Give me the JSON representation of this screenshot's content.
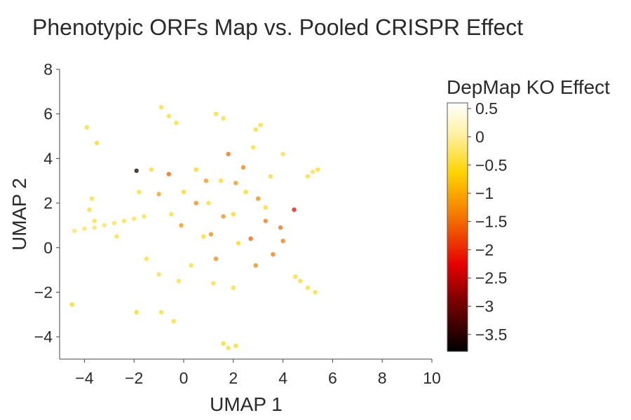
{
  "chart_data": {
    "type": "scatter",
    "title": "Phenotypic ORFs Map vs. Pooled CRISPR Effect",
    "xlabel": "UMAP 1",
    "ylabel": "UMAP 2",
    "xlim": [
      -5,
      10
    ],
    "ylim": [
      -5,
      8
    ],
    "x_ticks": [
      -4,
      -2,
      0,
      2,
      4,
      6,
      8,
      10
    ],
    "y_ticks": [
      -4,
      -2,
      0,
      2,
      4,
      6,
      8
    ],
    "x_tick_labels": [
      "−4",
      "−2",
      "0",
      "2",
      "4",
      "6",
      "8",
      "10"
    ],
    "y_tick_labels": [
      "−4",
      "−2",
      "0",
      "2",
      "4",
      "6",
      "8"
    ],
    "grid": false,
    "colorbar": {
      "title": "DepMap KO Effect",
      "range": [
        -3.8,
        0.6
      ],
      "ticks": [
        0.5,
        0,
        -0.5,
        -1,
        -1.5,
        -2,
        -2.5,
        -3,
        -3.5
      ],
      "tick_labels": [
        "0.5",
        "0",
        "−0.5",
        "−1",
        "−1.5",
        "−2",
        "−2.5",
        "−3",
        "−3.5"
      ],
      "colorscale": [
        [
          0.0,
          "#000000"
        ],
        [
          0.2,
          "#7a0000"
        ],
        [
          0.35,
          "#e60000"
        ],
        [
          0.55,
          "#f57a00"
        ],
        [
          0.72,
          "#ffd400"
        ],
        [
          0.87,
          "#fff0a0"
        ],
        [
          1.0,
          "#ffffff"
        ]
      ]
    },
    "series": [
      {
        "points": [
          [
            -1.9,
            3.45,
            -3.7
          ],
          [
            4.45,
            1.7,
            -2.2
          ],
          [
            -0.6,
            3.3,
            -1.6
          ],
          [
            1.8,
            4.2,
            -1.5
          ],
          [
            3.3,
            1.2,
            -1.4
          ],
          [
            2.7,
            0.4,
            -1.6
          ],
          [
            0.5,
            2.0,
            -1.3
          ],
          [
            3.9,
            0.9,
            -1.5
          ],
          [
            2.1,
            2.9,
            -1.2
          ],
          [
            1.3,
            -0.5,
            -1.3
          ],
          [
            3.6,
            -0.3,
            -1.4
          ],
          [
            -0.1,
            1.0,
            -1.2
          ],
          [
            2.4,
            3.6,
            -1.35
          ],
          [
            1.6,
            1.4,
            -1.25
          ],
          [
            3.0,
            2.2,
            -1.3
          ],
          [
            0.9,
            3.0,
            -1.2
          ],
          [
            4.0,
            0.3,
            -1.4
          ],
          [
            -1.0,
            2.4,
            -1.1
          ],
          [
            2.9,
            -0.8,
            -1.3
          ],
          [
            1.1,
            0.6,
            -1.25
          ],
          [
            -3.9,
            5.4,
            -0.5
          ],
          [
            -4.5,
            -2.55,
            -0.6
          ],
          [
            -3.5,
            4.7,
            -0.6
          ],
          [
            -3.7,
            2.2,
            -0.5
          ],
          [
            -3.8,
            1.7,
            -0.5
          ],
          [
            -3.6,
            1.2,
            -0.5
          ],
          [
            5.4,
            3.5,
            -0.5
          ],
          [
            5.2,
            3.4,
            -0.4
          ],
          [
            5.0,
            3.2,
            -0.5
          ],
          [
            5.3,
            -2.0,
            -0.5
          ],
          [
            5.0,
            -1.8,
            -0.5
          ],
          [
            4.7,
            -1.5,
            -0.5
          ],
          [
            4.5,
            -1.3,
            -0.5
          ],
          [
            1.6,
            -4.3,
            -0.6
          ],
          [
            1.8,
            -4.5,
            -0.5
          ],
          [
            2.1,
            -4.4,
            -0.6
          ],
          [
            -1.9,
            -2.9,
            -0.6
          ],
          [
            -0.4,
            -3.3,
            -0.5
          ],
          [
            -0.9,
            -2.9,
            -0.5
          ],
          [
            -2.7,
            0.5,
            -0.4
          ],
          [
            -4.4,
            0.75,
            -0.3
          ],
          [
            -4.0,
            0.85,
            -0.3
          ],
          [
            -3.6,
            0.9,
            -0.35
          ],
          [
            -3.2,
            1.0,
            -0.3
          ],
          [
            -2.8,
            1.1,
            -0.35
          ],
          [
            -2.4,
            1.2,
            -0.4
          ],
          [
            -2.0,
            1.3,
            -0.4
          ],
          [
            -1.6,
            1.4,
            -0.45
          ],
          [
            -0.9,
            6.3,
            -0.5
          ],
          [
            -0.6,
            5.9,
            -0.5
          ],
          [
            -0.3,
            5.6,
            -0.5
          ],
          [
            1.3,
            6.0,
            -0.5
          ],
          [
            1.6,
            5.8,
            -0.5
          ],
          [
            3.1,
            5.5,
            -0.5
          ],
          [
            2.9,
            5.3,
            -0.5
          ],
          [
            4.0,
            4.2,
            -0.4
          ],
          [
            0.0,
            2.5,
            -0.6
          ],
          [
            1.0,
            2.0,
            -0.5
          ],
          [
            2.0,
            1.5,
            -0.6
          ],
          [
            0.5,
            3.5,
            -0.55
          ],
          [
            1.5,
            3.0,
            -0.5
          ],
          [
            2.5,
            2.5,
            -0.6
          ],
          [
            -0.5,
            1.5,
            -0.5
          ],
          [
            0.8,
            0.5,
            -0.55
          ],
          [
            2.2,
            0.2,
            -0.6
          ],
          [
            3.3,
            1.8,
            -0.55
          ],
          [
            -1.3,
            3.5,
            -0.5
          ],
          [
            -1.8,
            2.5,
            -0.5
          ],
          [
            0.3,
            -0.8,
            -0.45
          ],
          [
            1.2,
            -1.6,
            -0.45
          ],
          [
            2.0,
            -1.8,
            -0.5
          ],
          [
            -0.2,
            -1.5,
            -0.45
          ],
          [
            -1.5,
            -0.5,
            -0.45
          ],
          [
            -1.0,
            -1.2,
            -0.4
          ],
          [
            3.5,
            3.2,
            -0.5
          ],
          [
            2.8,
            4.5,
            -0.5
          ]
        ]
      }
    ]
  }
}
